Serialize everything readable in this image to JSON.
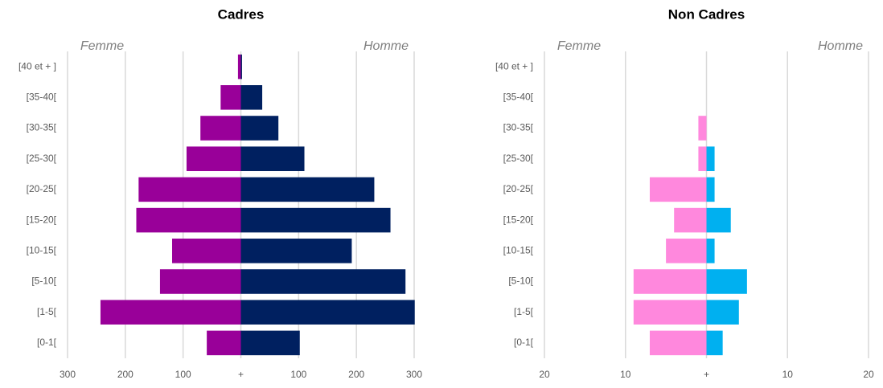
{
  "chart_data": [
    {
      "type": "bar",
      "orientation": "horizontal",
      "title": "Cadres",
      "annotations": [
        "Femme",
        "Homme"
      ],
      "categories": [
        "[0-1[",
        "[1-5[",
        "[5-10[",
        "[10-15[",
        "[15-20[",
        "[20-25[",
        "[25-30[",
        "[30-35[",
        "[35-40[",
        "[40 et + ]"
      ],
      "series": [
        {
          "name": "Femme",
          "color": "#990099",
          "values": [
            -59,
            -243,
            -140,
            -119,
            -181,
            -177,
            -94,
            -70,
            -35,
            -5
          ]
        },
        {
          "name": "Homme",
          "color": "#002060",
          "values": [
            102,
            301,
            285,
            192,
            259,
            231,
            110,
            65,
            37,
            2
          ]
        }
      ],
      "xlim": [
        -300,
        300
      ],
      "xticks": [
        {
          "value": -300,
          "label": "300"
        },
        {
          "value": -200,
          "label": "200"
        },
        {
          "value": -100,
          "label": "100"
        },
        {
          "value": 0,
          "label": "+"
        },
        100,
        200,
        300
      ],
      "grid": true
    },
    {
      "type": "bar",
      "orientation": "horizontal",
      "title": "Non Cadres",
      "annotations": [
        "Femme",
        "Homme"
      ],
      "categories": [
        "[0-1[",
        "[1-5[",
        "[5-10[",
        "[10-15[",
        "[15-20[",
        "[20-25[",
        "[25-30[",
        "[30-35[",
        "[35-40[",
        "[40 et + ]"
      ],
      "series": [
        {
          "name": "Femme",
          "color": "#ff88dd",
          "values": [
            -7,
            -9,
            -9,
            -5,
            -4,
            -7,
            -1,
            -1,
            0,
            0
          ]
        },
        {
          "name": "Homme",
          "color": "#00b0f0",
          "values": [
            2,
            4,
            5,
            1,
            3,
            1,
            1,
            0,
            0,
            0
          ]
        }
      ],
      "xlim": [
        -20,
        20
      ],
      "xticks": [
        {
          "value": -20,
          "label": "20"
        },
        {
          "value": -10,
          "label": "10"
        },
        {
          "value": 0,
          "label": "+"
        },
        10,
        20
      ],
      "grid": true
    }
  ]
}
